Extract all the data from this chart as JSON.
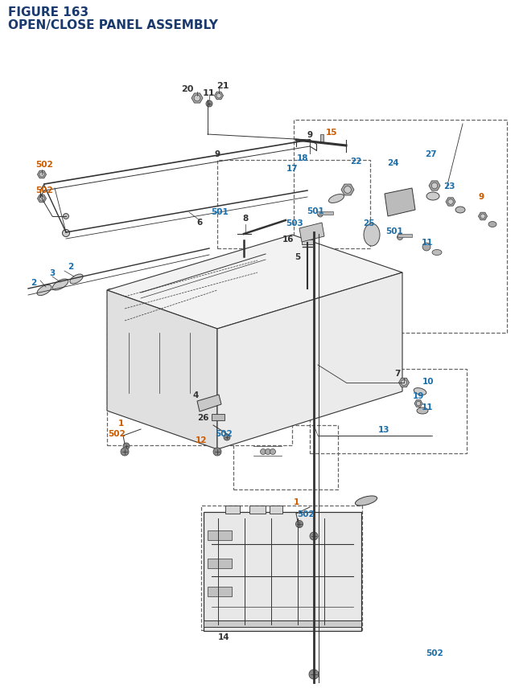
{
  "title_line1": "FIGURE 163",
  "title_line2": "OPEN/CLOSE PANEL ASSEMBLY",
  "title_color": "#1a3a6e",
  "title_fontsize": 11,
  "bg_color": "#ffffff",
  "line_color": "#333333",
  "label_colors": {
    "black": "#333333",
    "blue": "#1a6eaa",
    "orange": "#c85a00",
    "darkblue": "#1a3a6e"
  },
  "label_fontsize": 7.5
}
